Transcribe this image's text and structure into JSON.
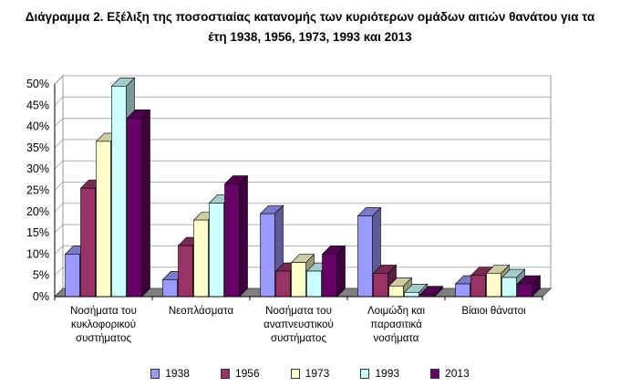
{
  "title": {
    "line1": "Διάγραμμα 2.  Εξέλιξη της ποσοστιαίας κατανομής των κυριότερων ομάδων αιτιών θανάτου για τα",
    "line2": "έτη 1938, 1956, 1973, 1993 και 2013"
  },
  "chart_data": {
    "type": "bar",
    "categories": [
      [
        "Νοσήματα του",
        "κυκλοφορικού",
        "συστήματος"
      ],
      [
        "Νεοπλάσματα"
      ],
      [
        "Νοσήματα του",
        "αναπνευστικού",
        "συστήματος"
      ],
      [
        "Λοιμώδη και",
        "παρασιτικά",
        "νοσήματα"
      ],
      [
        "Βίαιοι θάνατοι"
      ]
    ],
    "series": [
      {
        "name": "1938",
        "color": "#9999FF",
        "values": [
          10,
          4,
          19.5,
          19,
          3
        ]
      },
      {
        "name": "1956",
        "color": "#993366",
        "values": [
          25.5,
          12,
          6,
          5.5,
          5
        ]
      },
      {
        "name": "1973",
        "color": "#FFFFCC",
        "values": [
          36.5,
          18,
          8,
          2.5,
          5.5
        ]
      },
      {
        "name": "1993",
        "color": "#CCFFFF",
        "values": [
          49.5,
          22,
          6,
          1,
          4.5
        ]
      },
      {
        "name": "2013",
        "color": "#660066",
        "values": [
          42,
          26.5,
          10,
          0.5,
          3
        ]
      }
    ],
    "y_ticks": [
      "0%",
      "5%",
      "10%",
      "15%",
      "20%",
      "25%",
      "30%",
      "35%",
      "40%",
      "45%",
      "50%"
    ],
    "ylim": [
      0,
      50
    ],
    "grid": true,
    "legend": "bottom"
  }
}
